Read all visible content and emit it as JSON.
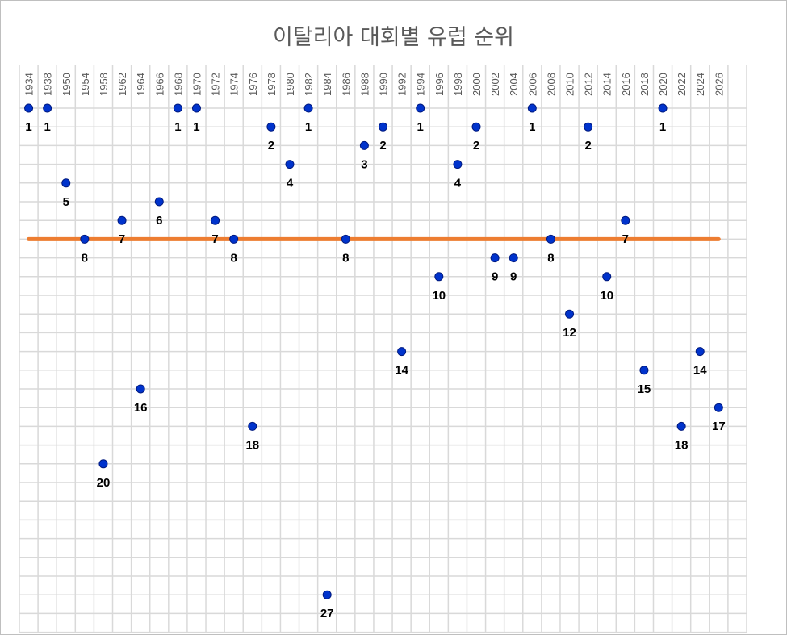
{
  "chart_data": {
    "type": "scatter",
    "title": "이탈리아 대회별 유럽 순위",
    "xlabel": "",
    "ylabel": "",
    "x_ticks": [
      1934,
      1938,
      1950,
      1954,
      1958,
      1962,
      1964,
      1966,
      1968,
      1970,
      1972,
      1974,
      1976,
      1978,
      1980,
      1982,
      1984,
      1986,
      1988,
      1990,
      1992,
      1994,
      1996,
      1998,
      2000,
      2002,
      2004,
      2006,
      2008,
      2010,
      2012,
      2014,
      2016,
      2018,
      2020,
      2022,
      2024,
      2026
    ],
    "y_reversed": true,
    "ylim": [
      1,
      28
    ],
    "grid": true,
    "reference_line": {
      "value": 8,
      "color": "#ed7d31"
    },
    "marker_color": "#0033cc",
    "series": [
      {
        "points": [
          {
            "x": 1934,
            "y": 1
          },
          {
            "x": 1938,
            "y": 1
          },
          {
            "x": 1950,
            "y": 5
          },
          {
            "x": 1954,
            "y": 8
          },
          {
            "x": 1958,
            "y": 20
          },
          {
            "x": 1962,
            "y": 7
          },
          {
            "x": 1964,
            "y": 16
          },
          {
            "x": 1966,
            "y": 6
          },
          {
            "x": 1968,
            "y": 1
          },
          {
            "x": 1970,
            "y": 1
          },
          {
            "x": 1972,
            "y": 7
          },
          {
            "x": 1974,
            "y": 8
          },
          {
            "x": 1976,
            "y": 18
          },
          {
            "x": 1978,
            "y": 2
          },
          {
            "x": 1980,
            "y": 4
          },
          {
            "x": 1982,
            "y": 1
          },
          {
            "x": 1984,
            "y": 27
          },
          {
            "x": 1986,
            "y": 8
          },
          {
            "x": 1988,
            "y": 3
          },
          {
            "x": 1990,
            "y": 2
          },
          {
            "x": 1992,
            "y": 14
          },
          {
            "x": 1994,
            "y": 1
          },
          {
            "x": 1996,
            "y": 10
          },
          {
            "x": 1998,
            "y": 4
          },
          {
            "x": 2000,
            "y": 2
          },
          {
            "x": 2002,
            "y": 9
          },
          {
            "x": 2004,
            "y": 9
          },
          {
            "x": 2006,
            "y": 1
          },
          {
            "x": 2008,
            "y": 8
          },
          {
            "x": 2010,
            "y": 12
          },
          {
            "x": 2012,
            "y": 2
          },
          {
            "x": 2014,
            "y": 10
          },
          {
            "x": 2016,
            "y": 7
          },
          {
            "x": 2018,
            "y": 15
          },
          {
            "x": 2020,
            "y": 1
          },
          {
            "x": 2022,
            "y": 18
          },
          {
            "x": 2024,
            "y": 14
          },
          {
            "x": 2026,
            "y": 17
          }
        ]
      }
    ]
  }
}
